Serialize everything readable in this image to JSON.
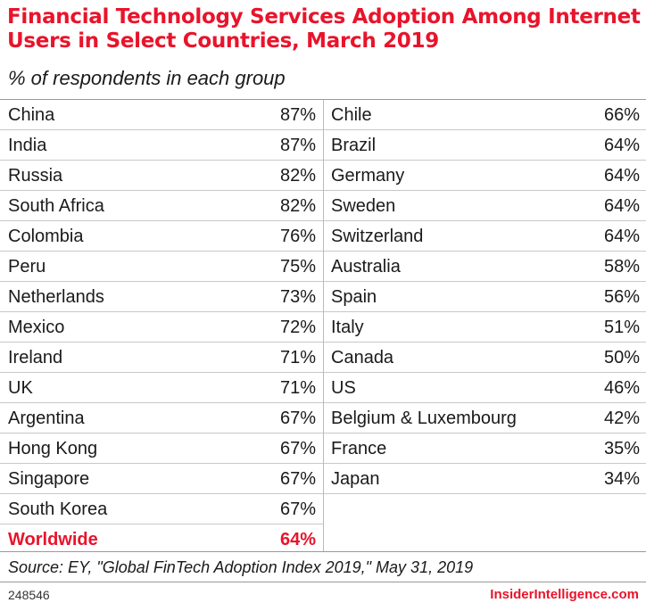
{
  "header": {
    "title": "Financial Technology Services Adoption Among Internet Users in Select Countries, March 2019",
    "subtitle": "% of respondents in each group"
  },
  "footer": {
    "source": "Source: EY, \"Global FinTech Adoption Index 2019,\" May 31, 2019",
    "chart_id": "248546",
    "brand": "InsiderIntelligence.com"
  },
  "colors": {
    "accent": "#e8142b",
    "text": "#1a1a1a",
    "rule": "#c8c8c8"
  },
  "chart_data": {
    "type": "table",
    "title": "Financial Technology Services Adoption Among Internet Users in Select Countries, March 2019",
    "subtitle": "% of respondents in each group",
    "unit": "%",
    "columns": [
      {
        "rows": [
          {
            "label": "China",
            "value": 87,
            "display": "87%"
          },
          {
            "label": "India",
            "value": 87,
            "display": "87%"
          },
          {
            "label": "Russia",
            "value": 82,
            "display": "82%"
          },
          {
            "label": "South Africa",
            "value": 82,
            "display": "82%"
          },
          {
            "label": "Colombia",
            "value": 76,
            "display": "76%"
          },
          {
            "label": "Peru",
            "value": 75,
            "display": "75%"
          },
          {
            "label": "Netherlands",
            "value": 73,
            "display": "73%"
          },
          {
            "label": "Mexico",
            "value": 72,
            "display": "72%"
          },
          {
            "label": "Ireland",
            "value": 71,
            "display": "71%"
          },
          {
            "label": "UK",
            "value": 71,
            "display": "71%"
          },
          {
            "label": "Argentina",
            "value": 67,
            "display": "67%"
          },
          {
            "label": "Hong Kong",
            "value": 67,
            "display": "67%"
          },
          {
            "label": "Singapore",
            "value": 67,
            "display": "67%"
          },
          {
            "label": "South Korea",
            "value": 67,
            "display": "67%"
          },
          {
            "label": "Worldwide",
            "value": 64,
            "display": "64%",
            "emphasis": true
          }
        ]
      },
      {
        "rows": [
          {
            "label": "Chile",
            "value": 66,
            "display": "66%"
          },
          {
            "label": "Brazil",
            "value": 64,
            "display": "64%"
          },
          {
            "label": "Germany",
            "value": 64,
            "display": "64%"
          },
          {
            "label": "Sweden",
            "value": 64,
            "display": "64%"
          },
          {
            "label": "Switzerland",
            "value": 64,
            "display": "64%"
          },
          {
            "label": "Australia",
            "value": 58,
            "display": "58%"
          },
          {
            "label": "Spain",
            "value": 56,
            "display": "56%"
          },
          {
            "label": "Italy",
            "value": 51,
            "display": "51%"
          },
          {
            "label": "Canada",
            "value": 50,
            "display": "50%"
          },
          {
            "label": "US",
            "value": 46,
            "display": "46%"
          },
          {
            "label": "Belgium & Luxembourg",
            "value": 42,
            "display": "42%"
          },
          {
            "label": "France",
            "value": 35,
            "display": "35%"
          },
          {
            "label": "Japan",
            "value": 34,
            "display": "34%"
          }
        ]
      }
    ]
  }
}
